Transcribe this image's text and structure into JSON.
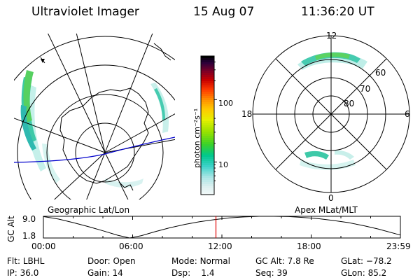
{
  "header": {
    "instrument": "Ultraviolet Imager",
    "date": "15 Aug 07",
    "time": "11:36:20 UT"
  },
  "geo_panel": {
    "label": "Geographic Lat/Lon"
  },
  "colorbar": {
    "unit_label": "photon cm⁻²s⁻¹",
    "ticks": [
      {
        "label": "100",
        "value": 100
      },
      {
        "label": "10",
        "value": 10
      }
    ],
    "scale": "log",
    "range": [
      3,
      500
    ]
  },
  "polar_panel": {
    "label": "Apex MLat/MLT",
    "mlt_labels": {
      "top": "12",
      "left": "18",
      "right": "6",
      "bottom": "0"
    },
    "lat_labels": [
      "60",
      "70",
      "80"
    ]
  },
  "chart_data": {
    "type": "line",
    "ylabel": "GC Alt",
    "yticks": [
      "9.0",
      "1.8"
    ],
    "ylim": [
      1.8,
      9.0
    ],
    "xlim": [
      0,
      24
    ],
    "xticks": [
      {
        "label": "00:00",
        "value": 0
      },
      {
        "label": "06:00",
        "value": 6
      },
      {
        "label": "12:00",
        "value": 12
      },
      {
        "label": "18:00",
        "value": 18
      },
      {
        "label": "23:59",
        "value": 23.98
      }
    ],
    "series": [
      {
        "x": [
          0,
          1,
          2,
          3,
          4,
          5,
          5.8,
          6.6,
          7.5,
          8.5,
          9.5,
          10.5,
          11.5,
          12.5,
          13.5,
          14.5,
          15.5,
          16.5,
          17.5,
          18.5,
          19.5,
          20.5,
          21.5,
          22.5,
          23.98
        ],
        "values": [
          8.9,
          8.1,
          6.9,
          5.6,
          4.2,
          2.7,
          1.8,
          2.6,
          3.9,
          5.2,
          6.3,
          7.2,
          7.9,
          8.5,
          8.8,
          9.0,
          9.0,
          8.9,
          8.6,
          8.2,
          7.6,
          6.9,
          5.9,
          4.8,
          2.8
        ]
      }
    ],
    "current_time": 11.6
  },
  "footer": {
    "rows": [
      [
        {
          "label": "Flt:",
          "value": "LBHL"
        },
        {
          "label": "Door:",
          "value": "Open"
        },
        {
          "label": "Mode:",
          "value": "Normal"
        },
        {
          "label": "GC Alt:",
          "value": "7.8 Re"
        },
        {
          "label": "GLat:",
          "value": "−78.2"
        }
      ],
      [
        {
          "label": "IP:",
          "value": "36.0"
        },
        {
          "label": "Gain:",
          "value": "14"
        },
        {
          "label": "Dsp:",
          "value": "1.4"
        },
        {
          "label": "Seq:",
          "value": "39"
        },
        {
          "label": "GLon:",
          "value": "85.2"
        }
      ]
    ]
  },
  "colors": {
    "red_marker": "#e00000",
    "blue_line": "#0000cc"
  }
}
